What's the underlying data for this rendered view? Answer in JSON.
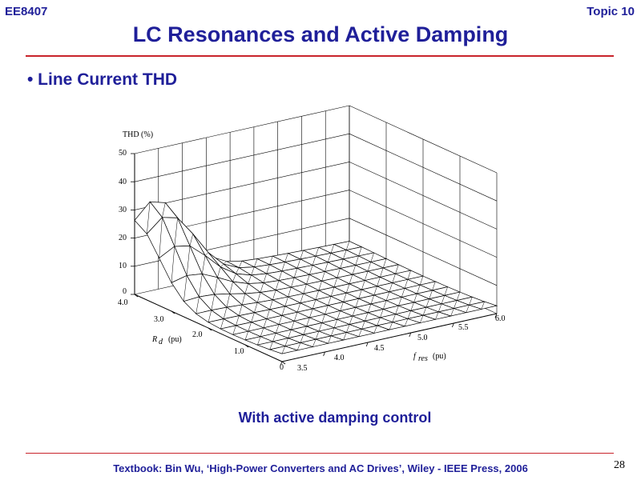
{
  "header": {
    "course": "EE8407",
    "topic": "Topic 10"
  },
  "title": "LC Resonances and Active Damping",
  "bullet": "• Line Current THD",
  "caption": "With active damping control",
  "footer": {
    "textbook": "Textbook: Bin Wu, ‘High-Power Converters and AC Drives’, Wiley - IEEE Press, 2006",
    "page": "28"
  },
  "figure": {
    "type": "surface3d",
    "z_label": "THD (%)",
    "z_ticks": [
      "0",
      "10",
      "20",
      "30",
      "40",
      "50"
    ],
    "z_range": [
      0,
      50
    ],
    "rd_label": "R",
    "rd_sub": "d",
    "rd_unit": "(pu)",
    "rd_ticks": [
      "0",
      "1.0",
      "2.0",
      "3.0",
      "4.0"
    ],
    "rd_range": [
      0,
      4
    ],
    "fres_label": "f",
    "fres_sub": "res",
    "fres_unit": "(pu)",
    "fres_ticks": [
      "3.5",
      "4.0",
      "4.5",
      "5.0",
      "5.5",
      "6.0"
    ],
    "fres_range": [
      3.5,
      6.0
    ],
    "surface_note": "THD peaks near 26% at fres 3.75 pu for low damping, decaying to about 1-3% elsewhere"
  }
}
